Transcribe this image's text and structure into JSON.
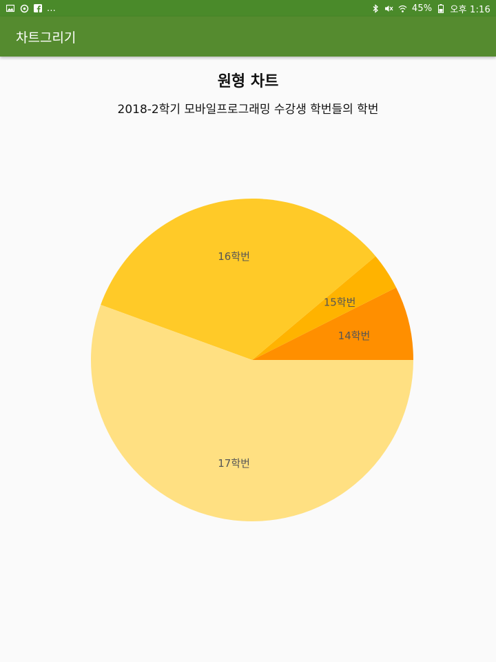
{
  "status_bar": {
    "left_text": "...",
    "battery": "45%",
    "time": "오후 1:16",
    "icons_left": [
      "gallery-icon",
      "sync-icon",
      "facebook-icon"
    ],
    "icons_right": [
      "bluetooth-icon",
      "mute-icon",
      "wifi-icon",
      "battery-icon"
    ]
  },
  "app_bar": {
    "title": "차트그리기"
  },
  "chart_data": {
    "type": "pie",
    "title": "원형 차트",
    "subtitle": "2018-2학기 모바일프로그래밍 수강생 학번들의 학번",
    "slices": [
      {
        "label": "14학번",
        "value": 2,
        "color": "#ff8f00"
      },
      {
        "label": "15학번",
        "value": 1,
        "color": "#ffb300"
      },
      {
        "label": "16학번",
        "value": 9,
        "color": "#ffca28"
      },
      {
        "label": "17학번",
        "value": 15,
        "color": "#ffe082"
      }
    ]
  },
  "colors": {
    "status_bar": "#4a8a2a",
    "app_bar": "#558b2f",
    "background": "#fafafa"
  }
}
